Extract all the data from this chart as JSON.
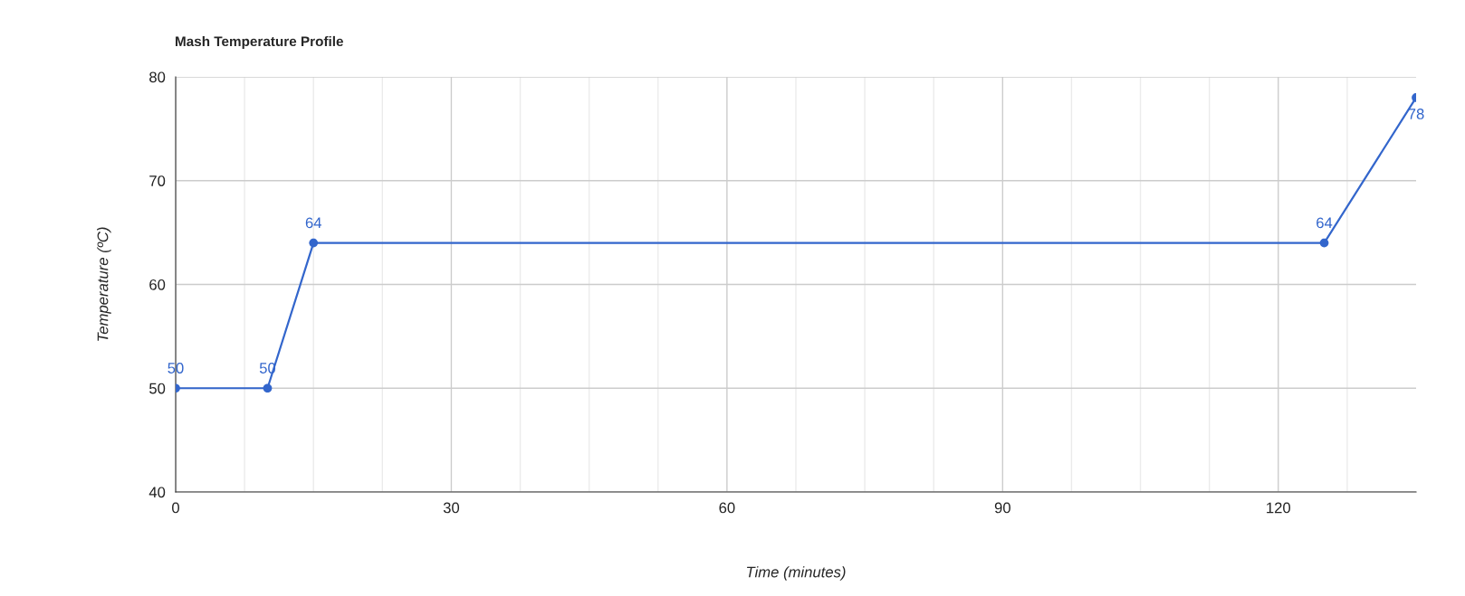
{
  "chart_data": {
    "type": "line",
    "title": "Mash Temperature Profile",
    "xlabel": "Time (minutes)",
    "ylabel": "Temperature (ºC)",
    "series": [
      {
        "color": "#3366cc",
        "x": [
          0,
          10,
          15,
          125,
          135
        ],
        "values": [
          50,
          50,
          64,
          64,
          78
        ]
      }
    ],
    "xlim": [
      0,
      135
    ],
    "xticks": [
      0,
      30,
      60,
      90,
      120
    ],
    "ylim": [
      40,
      80
    ],
    "yticks": [
      40,
      50,
      60,
      70,
      80
    ],
    "grid": true,
    "marker": "circle",
    "line_style": "solid",
    "data_labels": true,
    "legend": false
  }
}
